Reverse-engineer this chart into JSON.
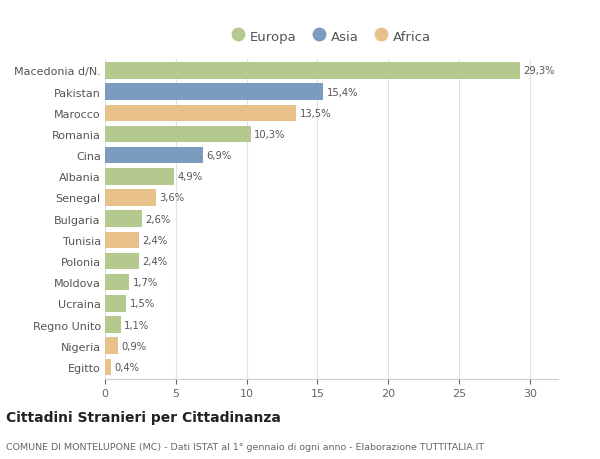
{
  "categories": [
    "Macedonia d/N.",
    "Pakistan",
    "Marocco",
    "Romania",
    "Cina",
    "Albania",
    "Senegal",
    "Bulgaria",
    "Tunisia",
    "Polonia",
    "Moldova",
    "Ucraina",
    "Regno Unito",
    "Nigeria",
    "Egitto"
  ],
  "values": [
    29.3,
    15.4,
    13.5,
    10.3,
    6.9,
    4.9,
    3.6,
    2.6,
    2.4,
    2.4,
    1.7,
    1.5,
    1.1,
    0.9,
    0.4
  ],
  "labels": [
    "29,3%",
    "15,4%",
    "13,5%",
    "10,3%",
    "6,9%",
    "4,9%",
    "3,6%",
    "2,6%",
    "2,4%",
    "2,4%",
    "1,7%",
    "1,5%",
    "1,1%",
    "0,9%",
    "0,4%"
  ],
  "continents": [
    "Europa",
    "Asia",
    "Africa",
    "Europa",
    "Asia",
    "Europa",
    "Africa",
    "Europa",
    "Africa",
    "Europa",
    "Europa",
    "Europa",
    "Europa",
    "Africa",
    "Africa"
  ],
  "colors": {
    "Europa": "#b5c98e",
    "Asia": "#7b9bbf",
    "Africa": "#e8c08a"
  },
  "title": "Cittadini Stranieri per Cittadinanza",
  "subtitle": "COMUNE DI MONTELUPONE (MC) - Dati ISTAT al 1° gennaio di ogni anno - Elaborazione TUTTITALIA.IT",
  "xlim": [
    0,
    32
  ],
  "background_color": "#ffffff",
  "grid_color": "#e0e0e0",
  "bar_height": 0.78
}
